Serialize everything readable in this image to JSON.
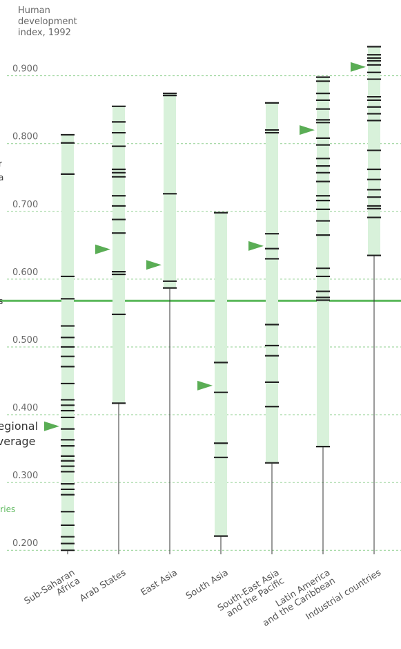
{
  "chart_data": {
    "type": "strip",
    "y_label": "Human development index, 1992",
    "ylim": [
      0.19,
      0.97
    ],
    "yticks": [
      {
        "value": 0.9,
        "label": "0.900"
      },
      {
        "value": 0.8,
        "label": "0.800"
      },
      {
        "value": 0.7,
        "label": "0.700"
      },
      {
        "value": 0.6,
        "label": "0.600"
      },
      {
        "value": 0.5,
        "label": "0.500"
      },
      {
        "value": 0.4,
        "label": "0.400"
      },
      {
        "value": 0.3,
        "label": "0.300"
      },
      {
        "value": 0.2,
        "label": "0.200"
      }
    ],
    "grid": true,
    "bar_color": "#d8f1da",
    "tick_color": "#222222",
    "marker_color": "#5aad55",
    "reference": {
      "value": 0.568,
      "color": "#5cb85c"
    },
    "side_labels": [
      "r",
      "a",
      "s",
      "Regional\naverage",
      "ntries"
    ],
    "series": [
      {
        "name": "Sub-Saharan Africa",
        "average": 0.383,
        "values": [
          0.813,
          0.801,
          0.755,
          0.604,
          0.571,
          0.531,
          0.514,
          0.5,
          0.486,
          0.471,
          0.446,
          0.422,
          0.414,
          0.406,
          0.396,
          0.379,
          0.363,
          0.354,
          0.339,
          0.332,
          0.324,
          0.316,
          0.298,
          0.29,
          0.282,
          0.257,
          0.237,
          0.22,
          0.21,
          0.2
        ]
      },
      {
        "name": "Arab States",
        "average": 0.644,
        "values": [
          0.855,
          0.832,
          0.816,
          0.796,
          0.762,
          0.757,
          0.751,
          0.723,
          0.708,
          0.688,
          0.668,
          0.611,
          0.607,
          0.548,
          0.417
        ]
      },
      {
        "name": "East Asia",
        "average": 0.621,
        "values": [
          0.874,
          0.871,
          0.726,
          0.597,
          0.587
        ]
      },
      {
        "name": "South Asia",
        "average": 0.443,
        "values": [
          0.698,
          0.477,
          0.433,
          0.358,
          0.337,
          0.221
        ]
      },
      {
        "name": "South-East Asia\nand the Pacific",
        "average": 0.649,
        "values": [
          0.86,
          0.82,
          0.816,
          0.667,
          0.645,
          0.63,
          0.533,
          0.502,
          0.487,
          0.448,
          0.412,
          0.329
        ]
      },
      {
        "name": "Latin America\nand the Caribbean",
        "average": 0.82,
        "values": [
          0.898,
          0.892,
          0.874,
          0.864,
          0.851,
          0.835,
          0.831,
          0.808,
          0.798,
          0.778,
          0.767,
          0.757,
          0.744,
          0.723,
          0.716,
          0.703,
          0.686,
          0.665,
          0.616,
          0.604,
          0.582,
          0.573,
          0.569,
          0.353
        ]
      },
      {
        "name": "Industrial countries",
        "average": 0.913,
        "values": [
          0.943,
          0.931,
          0.926,
          0.922,
          0.916,
          0.905,
          0.895,
          0.869,
          0.864,
          0.854,
          0.844,
          0.834,
          0.79,
          0.762,
          0.747,
          0.732,
          0.721,
          0.708,
          0.704,
          0.691,
          0.635
        ]
      }
    ]
  }
}
